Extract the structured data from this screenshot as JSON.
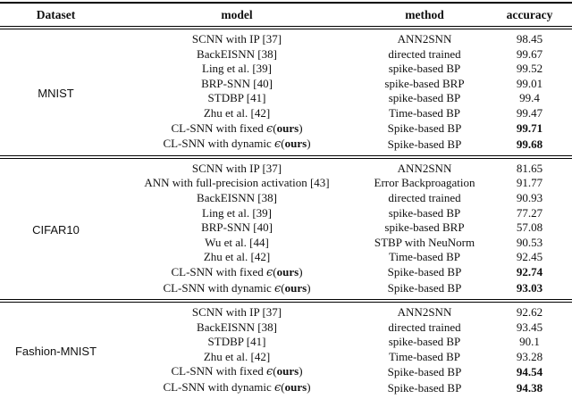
{
  "colors": {
    "text": "#111111",
    "rule": "#000000",
    "background": "#ffffff"
  },
  "table": {
    "columns": [
      "Dataset",
      "model",
      "method",
      "accuracy"
    ],
    "sections": [
      {
        "dataset": "MNIST",
        "rows": [
          {
            "model": "SCNN with IP [37]",
            "method": "ANN2SNN",
            "accuracy": "98.45",
            "accuracy_bold": false
          },
          {
            "model": "BackEISNN [38]",
            "method": "directed trained",
            "accuracy": "99.67",
            "accuracy_bold": false
          },
          {
            "model": "Ling et al. [39]",
            "method": "spike-based BP",
            "accuracy": "99.52",
            "accuracy_bold": false
          },
          {
            "model": "BRP-SNN [40]",
            "method": "spike-based BRP",
            "accuracy": "99.01",
            "accuracy_bold": false
          },
          {
            "model": "STDBP [41]",
            "method": "spike-based BP",
            "accuracy": "99.4",
            "accuracy_bold": false
          },
          {
            "model": "Zhu et al. [42]",
            "method": "Time-based BP",
            "accuracy": "99.47",
            "accuracy_bold": false
          },
          {
            "model_parts": [
              {
                "text": "CL-SNN with fixed ",
                "style": "normal"
              },
              {
                "text": "ϵ",
                "style": "epsilon"
              },
              {
                "text": "(",
                "style": "normal"
              },
              {
                "text": "ours",
                "style": "bold"
              },
              {
                "text": ")",
                "style": "normal"
              }
            ],
            "method": "Spike-based BP",
            "accuracy": "99.71",
            "accuracy_bold": true
          },
          {
            "model_parts": [
              {
                "text": "CL-SNN with dynamic ",
                "style": "normal"
              },
              {
                "text": "ϵ",
                "style": "epsilon"
              },
              {
                "text": "(",
                "style": "normal"
              },
              {
                "text": "ours",
                "style": "bold"
              },
              {
                "text": ")",
                "style": "normal"
              }
            ],
            "method": "Spike-based BP",
            "accuracy": "99.68",
            "accuracy_bold": true
          }
        ]
      },
      {
        "dataset": "CIFAR10",
        "rows": [
          {
            "model": "SCNN with IP [37]",
            "method": "ANN2SNN",
            "accuracy": "81.65",
            "accuracy_bold": false
          },
          {
            "model": "ANN with full-precision activation [43]",
            "method": "Error Backproagation",
            "accuracy": "91.77",
            "accuracy_bold": false
          },
          {
            "model": "BackEISNN [38]",
            "method": "directed trained",
            "accuracy": "90.93",
            "accuracy_bold": false
          },
          {
            "model": "Ling et al. [39]",
            "method": "spike-based BP",
            "accuracy": "77.27",
            "accuracy_bold": false
          },
          {
            "model": "BRP-SNN [40]",
            "method": "spike-based BRP",
            "accuracy": "57.08",
            "accuracy_bold": false
          },
          {
            "model": "Wu et al. [44]",
            "method": "STBP with NeuNorm",
            "accuracy": "90.53",
            "accuracy_bold": false
          },
          {
            "model": "Zhu et al. [42]",
            "method": "Time-based BP",
            "accuracy": "92.45",
            "accuracy_bold": false
          },
          {
            "model_parts": [
              {
                "text": "CL-SNN with fixed ",
                "style": "normal"
              },
              {
                "text": "ϵ",
                "style": "epsilon"
              },
              {
                "text": "(",
                "style": "normal"
              },
              {
                "text": "ours",
                "style": "bold"
              },
              {
                "text": ")",
                "style": "normal"
              }
            ],
            "method": "Spike-based BP",
            "accuracy": "92.74",
            "accuracy_bold": true
          },
          {
            "model_parts": [
              {
                "text": "CL-SNN with dynamic ",
                "style": "normal"
              },
              {
                "text": "ϵ",
                "style": "epsilon"
              },
              {
                "text": "(",
                "style": "normal"
              },
              {
                "text": "ours",
                "style": "bold"
              },
              {
                "text": ")",
                "style": "normal"
              }
            ],
            "method": "Spike-based BP",
            "accuracy": "93.03",
            "accuracy_bold": true
          }
        ]
      },
      {
        "dataset": "Fashion-MNIST",
        "rows": [
          {
            "model": "SCNN with IP [37]",
            "method": "ANN2SNN",
            "accuracy": "92.62",
            "accuracy_bold": false
          },
          {
            "model": "BackEISNN [38]",
            "method": "directed trained",
            "accuracy": "93.45",
            "accuracy_bold": false
          },
          {
            "model": "STDBP [41]",
            "method": "spike-based BP",
            "accuracy": "90.1",
            "accuracy_bold": false
          },
          {
            "model": "Zhu et al. [42]",
            "method": "Time-based BP",
            "accuracy": "93.28",
            "accuracy_bold": false
          },
          {
            "model_parts": [
              {
                "text": "CL-SNN with fixed ",
                "style": "normal"
              },
              {
                "text": "ϵ",
                "style": "epsilon"
              },
              {
                "text": "(",
                "style": "normal"
              },
              {
                "text": "ours",
                "style": "bold"
              },
              {
                "text": ")",
                "style": "normal"
              }
            ],
            "method": "Spike-based BP",
            "accuracy": "94.54",
            "accuracy_bold": true
          },
          {
            "model_parts": [
              {
                "text": "CL-SNN with dynamic ",
                "style": "normal"
              },
              {
                "text": "ϵ",
                "style": "epsilon"
              },
              {
                "text": "(",
                "style": "normal"
              },
              {
                "text": "ours",
                "style": "bold"
              },
              {
                "text": ")",
                "style": "normal"
              }
            ],
            "method": "Spike-based BP",
            "accuracy": "94.38",
            "accuracy_bold": true
          }
        ]
      }
    ]
  }
}
